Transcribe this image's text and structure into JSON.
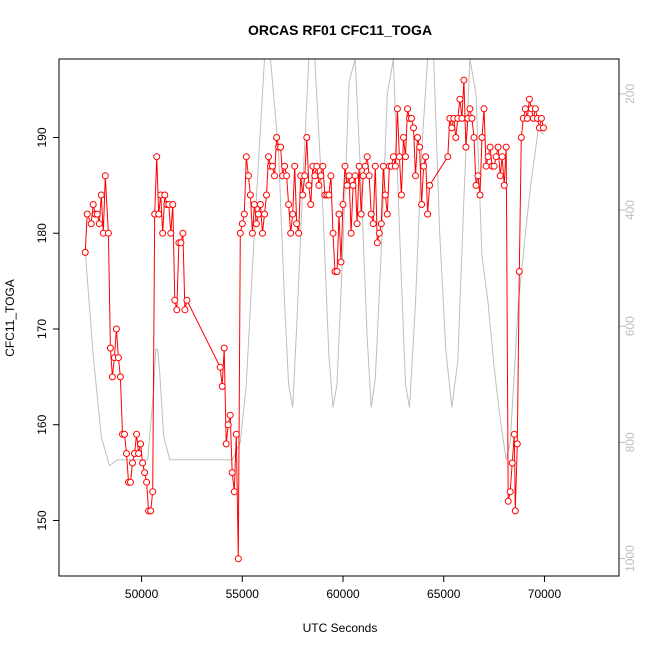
{
  "chart_data": {
    "type": "line",
    "title": "ORCAS RF01 CFC11_TOGA",
    "xlabel": "UTC Seconds",
    "ylabel": "CFC11_TOGA",
    "xlim": [
      45900,
      73700
    ],
    "ylim": [
      144.2,
      198.2
    ],
    "xticks": [
      50000,
      55000,
      60000,
      65000,
      70000
    ],
    "yticks": [
      150,
      160,
      170,
      180,
      190
    ],
    "y2ticks": [
      200,
      400,
      600,
      800,
      1000
    ],
    "y2lim_top_to_bottom": [
      140,
      1030
    ],
    "y2_reversed": true,
    "grid": false,
    "colors": {
      "series": "#ff0000",
      "secondary": "#bebebe",
      "axis": "#000000",
      "secondary_axis": "#bebebe"
    },
    "series": [
      {
        "values_xy": [
          [
            47200,
            178
          ],
          [
            47300,
            182
          ],
          [
            47500,
            181
          ],
          [
            47600,
            183
          ],
          [
            47700,
            182
          ],
          [
            47800,
            182
          ],
          [
            47900,
            181
          ],
          [
            48000,
            184
          ],
          [
            48100,
            180
          ],
          [
            48200,
            186
          ],
          [
            48350,
            180
          ],
          [
            48450,
            168
          ],
          [
            48550,
            165
          ],
          [
            48650,
            167
          ],
          [
            48750,
            170
          ],
          [
            48850,
            167
          ],
          [
            48950,
            165
          ],
          [
            49050,
            159
          ],
          [
            49150,
            159
          ],
          [
            49250,
            157
          ],
          [
            49350,
            154
          ],
          [
            49450,
            154
          ],
          [
            49550,
            156
          ],
          [
            49650,
            157
          ],
          [
            49750,
            159
          ],
          [
            49850,
            157
          ],
          [
            49950,
            158
          ],
          [
            50050,
            156
          ],
          [
            50150,
            155
          ],
          [
            50250,
            154
          ],
          [
            50350,
            151
          ],
          [
            50450,
            151
          ],
          [
            50550,
            153
          ],
          [
            50650,
            182
          ],
          [
            50750,
            188
          ],
          [
            50850,
            182
          ],
          [
            50950,
            184
          ],
          [
            51050,
            180
          ],
          [
            51150,
            184
          ],
          [
            51250,
            183
          ],
          [
            51350,
            183
          ],
          [
            51450,
            180
          ],
          [
            51550,
            183
          ],
          [
            51650,
            173
          ],
          [
            51750,
            172
          ],
          [
            51850,
            179
          ],
          [
            51950,
            179
          ],
          [
            52050,
            180
          ],
          [
            52150,
            172
          ],
          [
            52250,
            173
          ],
          [
            53900,
            166
          ],
          [
            54000,
            164
          ],
          [
            54100,
            168
          ],
          [
            54200,
            158
          ],
          [
            54300,
            160
          ],
          [
            54400,
            161
          ],
          [
            54500,
            155
          ],
          [
            54600,
            153
          ],
          [
            54700,
            159
          ],
          [
            54800,
            146
          ],
          [
            54900,
            180
          ],
          [
            55000,
            181
          ],
          [
            55100,
            182
          ],
          [
            55200,
            188
          ],
          [
            55300,
            186
          ],
          [
            55400,
            184
          ],
          [
            55500,
            180
          ],
          [
            55600,
            183
          ],
          [
            55700,
            181
          ],
          [
            55800,
            182
          ],
          [
            55900,
            183
          ],
          [
            56000,
            180
          ],
          [
            56100,
            182
          ],
          [
            56200,
            184
          ],
          [
            56300,
            188
          ],
          [
            56400,
            187
          ],
          [
            56500,
            187
          ],
          [
            56600,
            186
          ],
          [
            56700,
            190
          ],
          [
            56800,
            189
          ],
          [
            56900,
            189
          ],
          [
            57000,
            186
          ],
          [
            57100,
            187
          ],
          [
            57200,
            186
          ],
          [
            57300,
            183
          ],
          [
            57400,
            180
          ],
          [
            57500,
            182
          ],
          [
            57600,
            187
          ],
          [
            57700,
            181
          ],
          [
            57800,
            180
          ],
          [
            57900,
            186
          ],
          [
            58000,
            184
          ],
          [
            58100,
            186
          ],
          [
            58200,
            190
          ],
          [
            58300,
            185
          ],
          [
            58400,
            183
          ],
          [
            58500,
            187
          ],
          [
            58600,
            186
          ],
          [
            58700,
            187
          ],
          [
            58800,
            185
          ],
          [
            58900,
            186
          ],
          [
            59000,
            187
          ],
          [
            59100,
            184
          ],
          [
            59200,
            184
          ],
          [
            59300,
            184
          ],
          [
            59400,
            186
          ],
          [
            59500,
            180
          ],
          [
            59600,
            176
          ],
          [
            59700,
            176
          ],
          [
            59800,
            182
          ],
          [
            59900,
            177
          ],
          [
            60000,
            183
          ],
          [
            60100,
            187
          ],
          [
            60200,
            185
          ],
          [
            60300,
            186
          ],
          [
            60400,
            180
          ],
          [
            60500,
            185
          ],
          [
            60600,
            186
          ],
          [
            60700,
            181
          ],
          [
            60800,
            187
          ],
          [
            60900,
            182
          ],
          [
            61000,
            186
          ],
          [
            61100,
            187
          ],
          [
            61200,
            188
          ],
          [
            61300,
            186
          ],
          [
            61400,
            182
          ],
          [
            61500,
            181
          ],
          [
            61600,
            187
          ],
          [
            61700,
            179
          ],
          [
            61800,
            180
          ],
          [
            61900,
            181
          ],
          [
            62000,
            187
          ],
          [
            62100,
            184
          ],
          [
            62200,
            182
          ],
          [
            62300,
            187
          ],
          [
            62400,
            187
          ],
          [
            62500,
            188
          ],
          [
            62600,
            187
          ],
          [
            62700,
            193
          ],
          [
            62800,
            188
          ],
          [
            62900,
            184
          ],
          [
            63000,
            190
          ],
          [
            63100,
            188
          ],
          [
            63200,
            193
          ],
          [
            63300,
            192
          ],
          [
            63400,
            192
          ],
          [
            63500,
            191
          ],
          [
            63600,
            186
          ],
          [
            63700,
            190
          ],
          [
            63800,
            189
          ],
          [
            63900,
            183
          ],
          [
            64000,
            187
          ],
          [
            64100,
            188
          ],
          [
            64200,
            182
          ],
          [
            64300,
            185
          ],
          [
            65200,
            188
          ],
          [
            65300,
            192
          ],
          [
            65400,
            191
          ],
          [
            65500,
            192
          ],
          [
            65600,
            190
          ],
          [
            65700,
            192
          ],
          [
            65800,
            194
          ],
          [
            65900,
            192
          ],
          [
            66000,
            196
          ],
          [
            66100,
            189
          ],
          [
            66200,
            192
          ],
          [
            66300,
            193
          ],
          [
            66400,
            192
          ],
          [
            66500,
            190
          ],
          [
            66600,
            185
          ],
          [
            66700,
            186
          ],
          [
            66800,
            184
          ],
          [
            66900,
            190
          ],
          [
            67000,
            193
          ],
          [
            67100,
            187
          ],
          [
            67200,
            188
          ],
          [
            67300,
            189
          ],
          [
            67400,
            187
          ],
          [
            67500,
            187
          ],
          [
            67600,
            188
          ],
          [
            67700,
            189
          ],
          [
            67800,
            186
          ],
          [
            67900,
            188
          ],
          [
            68000,
            185
          ],
          [
            68100,
            189
          ],
          [
            68200,
            152
          ],
          [
            68300,
            153
          ],
          [
            68400,
            156
          ],
          [
            68500,
            159
          ],
          [
            68550,
            151
          ],
          [
            68650,
            158
          ],
          [
            68750,
            176
          ],
          [
            68850,
            190
          ],
          [
            68950,
            192
          ],
          [
            69050,
            193
          ],
          [
            69150,
            192
          ],
          [
            69250,
            194
          ],
          [
            69350,
            193
          ],
          [
            69450,
            192
          ],
          [
            69550,
            193
          ],
          [
            69650,
            192
          ],
          [
            69750,
            191
          ],
          [
            69850,
            192
          ],
          [
            69950,
            191
          ]
        ]
      }
    ],
    "secondary_series": {
      "y2_values_xy": [
        [
          47200,
          470
        ],
        [
          47600,
          650
        ],
        [
          48000,
          790
        ],
        [
          48400,
          840
        ],
        [
          48800,
          830
        ],
        [
          49300,
          830
        ],
        [
          49800,
          830
        ],
        [
          50300,
          830
        ],
        [
          50600,
          710
        ],
        [
          50700,
          640
        ],
        [
          50800,
          640
        ],
        [
          50900,
          680
        ],
        [
          51100,
          790
        ],
        [
          51400,
          830
        ],
        [
          52000,
          830
        ],
        [
          53000,
          830
        ],
        [
          54000,
          830
        ],
        [
          54500,
          830
        ],
        [
          54900,
          800
        ],
        [
          55200,
          700
        ],
        [
          55500,
          500
        ],
        [
          55800,
          320
        ],
        [
          56100,
          140
        ],
        [
          56400,
          140
        ],
        [
          56800,
          300
        ],
        [
          57100,
          560
        ],
        [
          57300,
          700
        ],
        [
          57500,
          740
        ],
        [
          57700,
          600
        ],
        [
          58000,
          360
        ],
        [
          58300,
          140
        ],
        [
          58600,
          140
        ],
        [
          59000,
          400
        ],
        [
          59300,
          650
        ],
        [
          59500,
          740
        ],
        [
          59700,
          700
        ],
        [
          60000,
          460
        ],
        [
          60300,
          180
        ],
        [
          60600,
          140
        ],
        [
          60900,
          360
        ],
        [
          61200,
          620
        ],
        [
          61400,
          740
        ],
        [
          61600,
          690
        ],
        [
          61900,
          470
        ],
        [
          62200,
          200
        ],
        [
          62500,
          140
        ],
        [
          62800,
          430
        ],
        [
          63100,
          700
        ],
        [
          63300,
          740
        ],
        [
          63600,
          560
        ],
        [
          63900,
          300
        ],
        [
          64200,
          140
        ],
        [
          64500,
          140
        ],
        [
          64800,
          440
        ],
        [
          65100,
          640
        ],
        [
          65400,
          740
        ],
        [
          65700,
          660
        ],
        [
          66000,
          380
        ],
        [
          66300,
          140
        ],
        [
          66600,
          200
        ],
        [
          66900,
          480
        ],
        [
          67200,
          560
        ],
        [
          67500,
          670
        ],
        [
          67800,
          760
        ],
        [
          68100,
          830
        ],
        [
          68300,
          800
        ],
        [
          68500,
          680
        ],
        [
          68700,
          560
        ],
        [
          69000,
          460
        ],
        [
          69300,
          360
        ],
        [
          69700,
          260
        ],
        [
          69950,
          270
        ]
      ]
    }
  }
}
